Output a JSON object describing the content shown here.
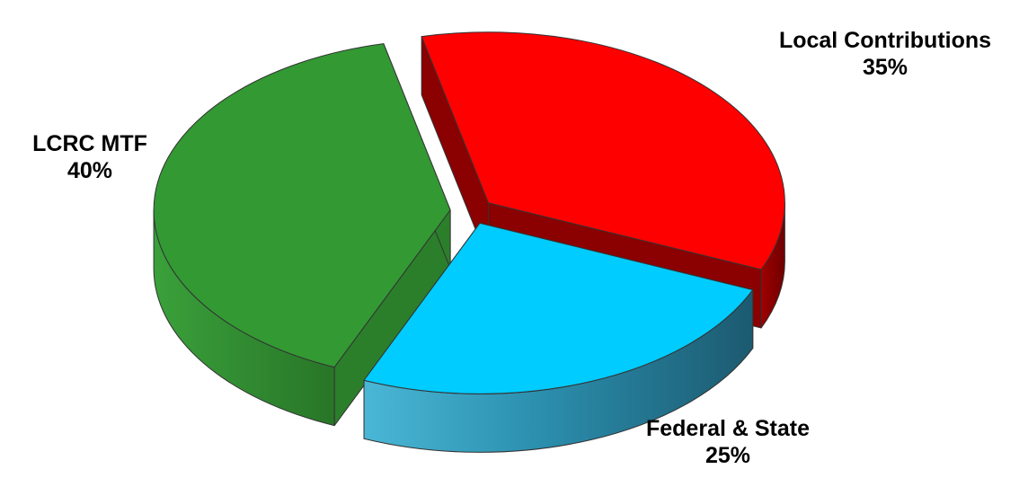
{
  "chart_data": {
    "type": "pie",
    "style": "3d-exploded",
    "slices": [
      {
        "label": "Local Contributions",
        "value": 35,
        "value_label": "35%",
        "color": "#ff0000",
        "side_color": "#8b0000"
      },
      {
        "label": "Federal & State",
        "value": 25,
        "value_label": "25%",
        "color": "#00ccff",
        "side_color": "#1e6f86"
      },
      {
        "label": "LCRC MTF",
        "value": 40,
        "value_label": "40%",
        "color": "#339933",
        "side_color": "#2b7f2b"
      }
    ],
    "legend": "none"
  }
}
